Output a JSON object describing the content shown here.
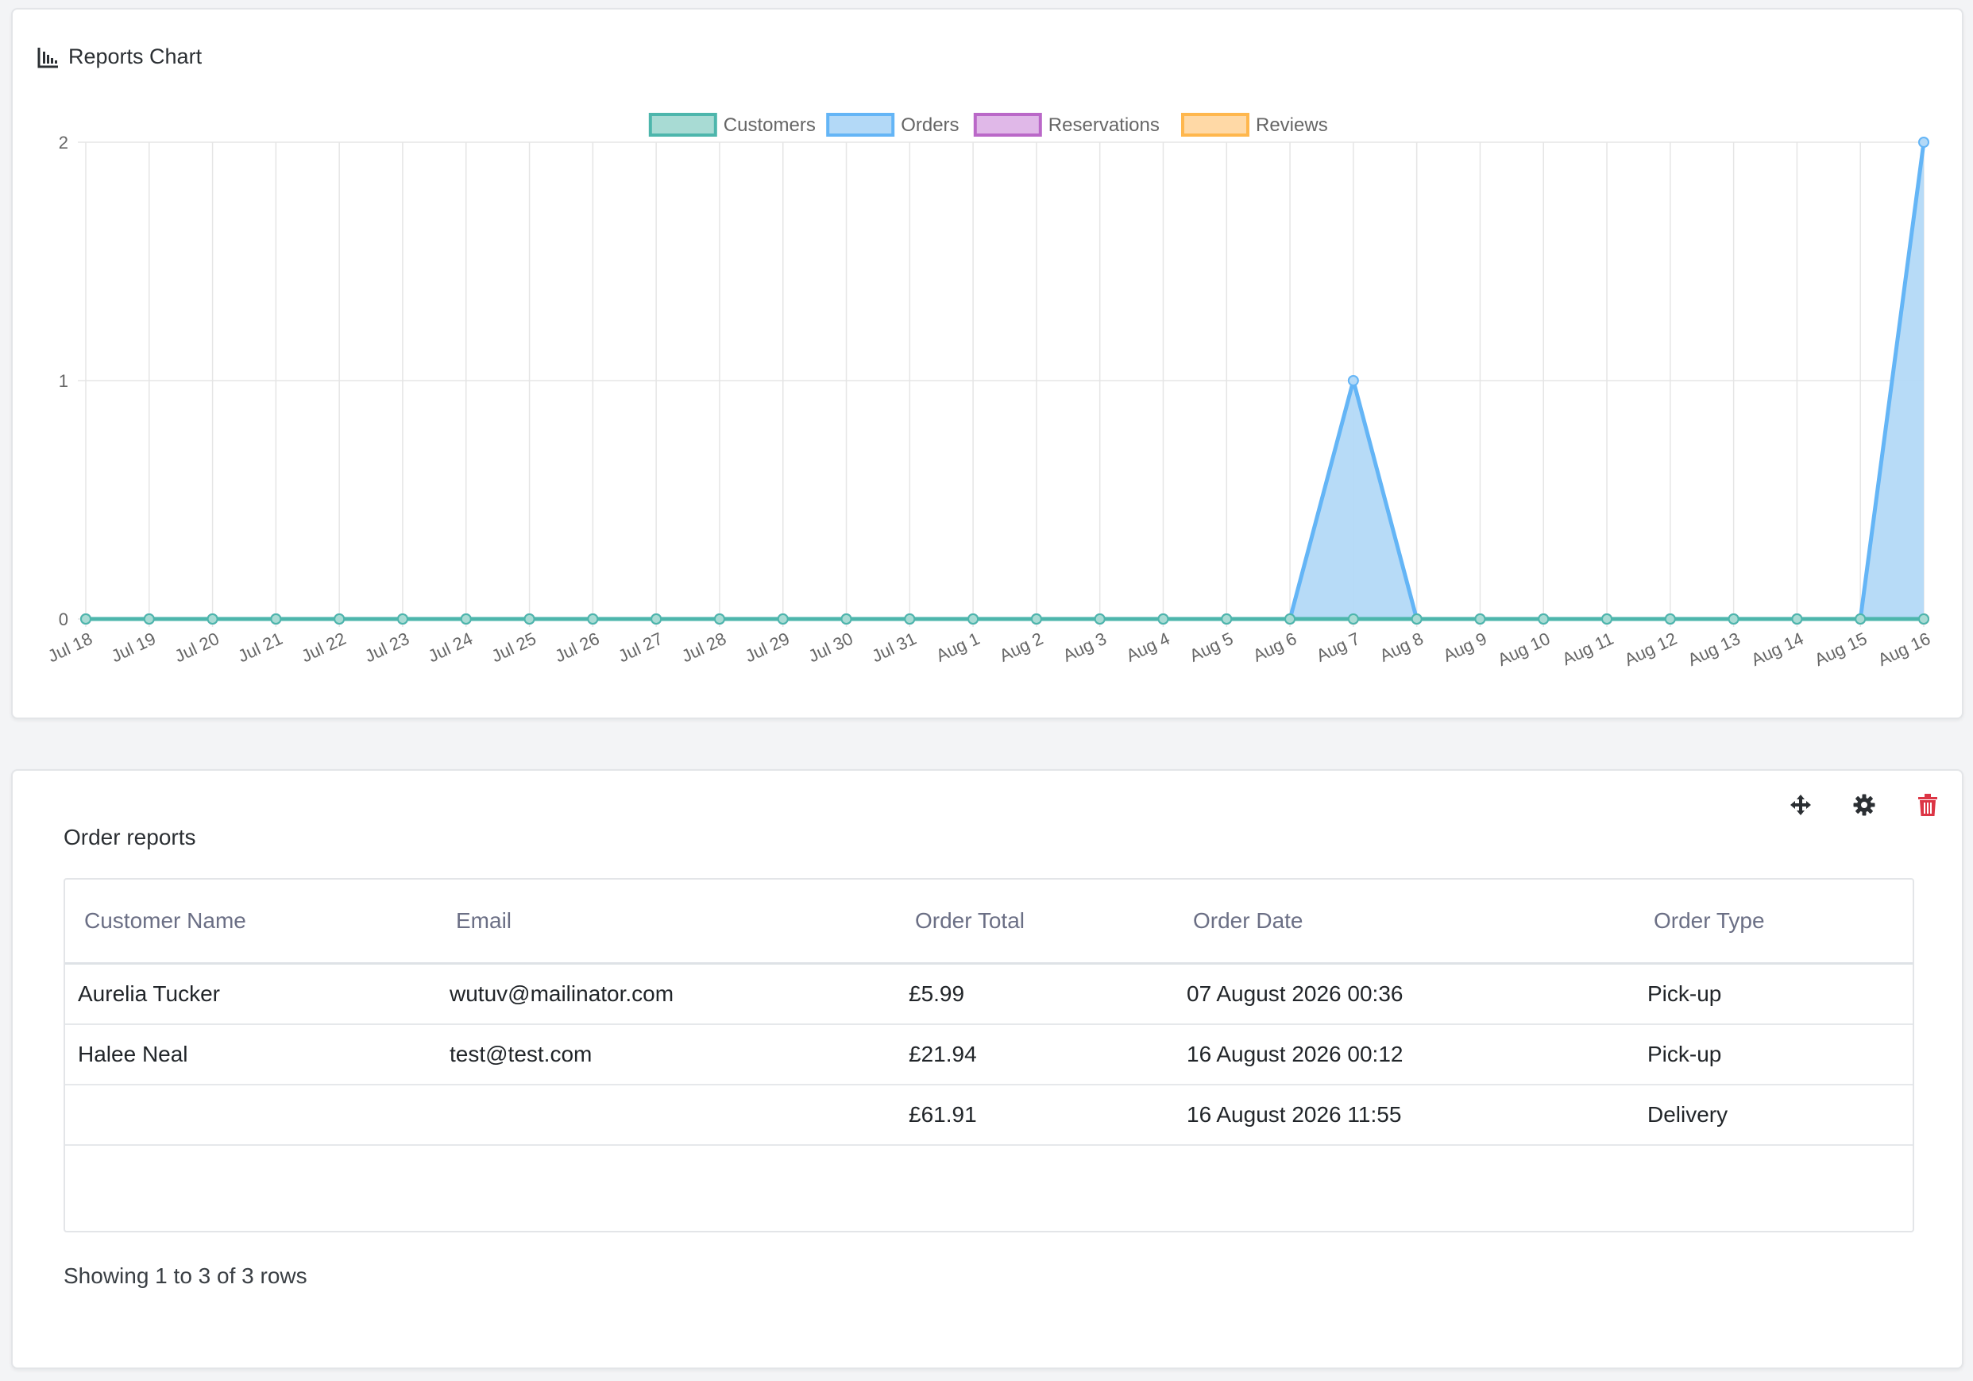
{
  "chart_card": {
    "title": "Reports Chart",
    "icon": "bar-chart-icon"
  },
  "chart_data": {
    "type": "line",
    "title": "",
    "x": [
      "Jul 18",
      "Jul 19",
      "Jul 20",
      "Jul 21",
      "Jul 22",
      "Jul 23",
      "Jul 24",
      "Jul 25",
      "Jul 26",
      "Jul 27",
      "Jul 28",
      "Jul 29",
      "Jul 30",
      "Jul 31",
      "Aug 1",
      "Aug 2",
      "Aug 3",
      "Aug 4",
      "Aug 5",
      "Aug 6",
      "Aug 7",
      "Aug 8",
      "Aug 9",
      "Aug 10",
      "Aug 11",
      "Aug 12",
      "Aug 13",
      "Aug 14",
      "Aug 15",
      "Aug 16"
    ],
    "ylim": [
      0,
      2
    ],
    "yticks": [
      0,
      1,
      2
    ],
    "grid": true,
    "legend_position": "top",
    "fill": true,
    "series": [
      {
        "name": "Customers",
        "color": "#4db6ac",
        "fill": "#a8dbd4",
        "values": [
          0,
          0,
          0,
          0,
          0,
          0,
          0,
          0,
          0,
          0,
          0,
          0,
          0,
          0,
          0,
          0,
          0,
          0,
          0,
          0,
          0,
          0,
          0,
          0,
          0,
          0,
          0,
          0,
          0,
          0
        ]
      },
      {
        "name": "Orders",
        "color": "#64b5f6",
        "fill": "#b3d9f7",
        "values": [
          0,
          0,
          0,
          0,
          0,
          0,
          0,
          0,
          0,
          0,
          0,
          0,
          0,
          0,
          0,
          0,
          0,
          0,
          0,
          0,
          1,
          0,
          0,
          0,
          0,
          0,
          0,
          0,
          0,
          2
        ]
      },
      {
        "name": "Reservations",
        "color": "#ba68c8",
        "fill": "#e0b8e8",
        "values": [
          0,
          0,
          0,
          0,
          0,
          0,
          0,
          0,
          0,
          0,
          0,
          0,
          0,
          0,
          0,
          0,
          0,
          0,
          0,
          0,
          0,
          0,
          0,
          0,
          0,
          0,
          0,
          0,
          0,
          0
        ]
      },
      {
        "name": "Reviews",
        "color": "#ffb74d",
        "fill": "#ffd9a6",
        "values": [
          0,
          0,
          0,
          0,
          0,
          0,
          0,
          0,
          0,
          0,
          0,
          0,
          0,
          0,
          0,
          0,
          0,
          0,
          0,
          0,
          0,
          0,
          0,
          0,
          0,
          0,
          0,
          0,
          0,
          0
        ]
      }
    ]
  },
  "order_widget": {
    "title": "Order reports",
    "actions": {
      "move_icon": "move-icon",
      "settings_icon": "gear-icon",
      "delete_icon": "trash-icon",
      "delete_color": "#dc3545"
    },
    "columns": [
      "Customer Name",
      "Email",
      "Order Total",
      "Order Date",
      "Order Type"
    ],
    "rows": [
      {
        "name": "Aurelia Tucker",
        "email": "wutuv@mailinator.com",
        "total": "£5.99",
        "date": "07 August 2026 00:36",
        "type": "Pick-up"
      },
      {
        "name": "Halee Neal",
        "email": "test@test.com",
        "total": "£21.94",
        "date": "16 August 2026 00:12",
        "type": "Pick-up"
      },
      {
        "name": "",
        "email": "",
        "total": "£61.91",
        "date": "16 August 2026 11:55",
        "type": "Delivery"
      }
    ],
    "footer": "Showing 1 to 3 of 3 rows"
  }
}
